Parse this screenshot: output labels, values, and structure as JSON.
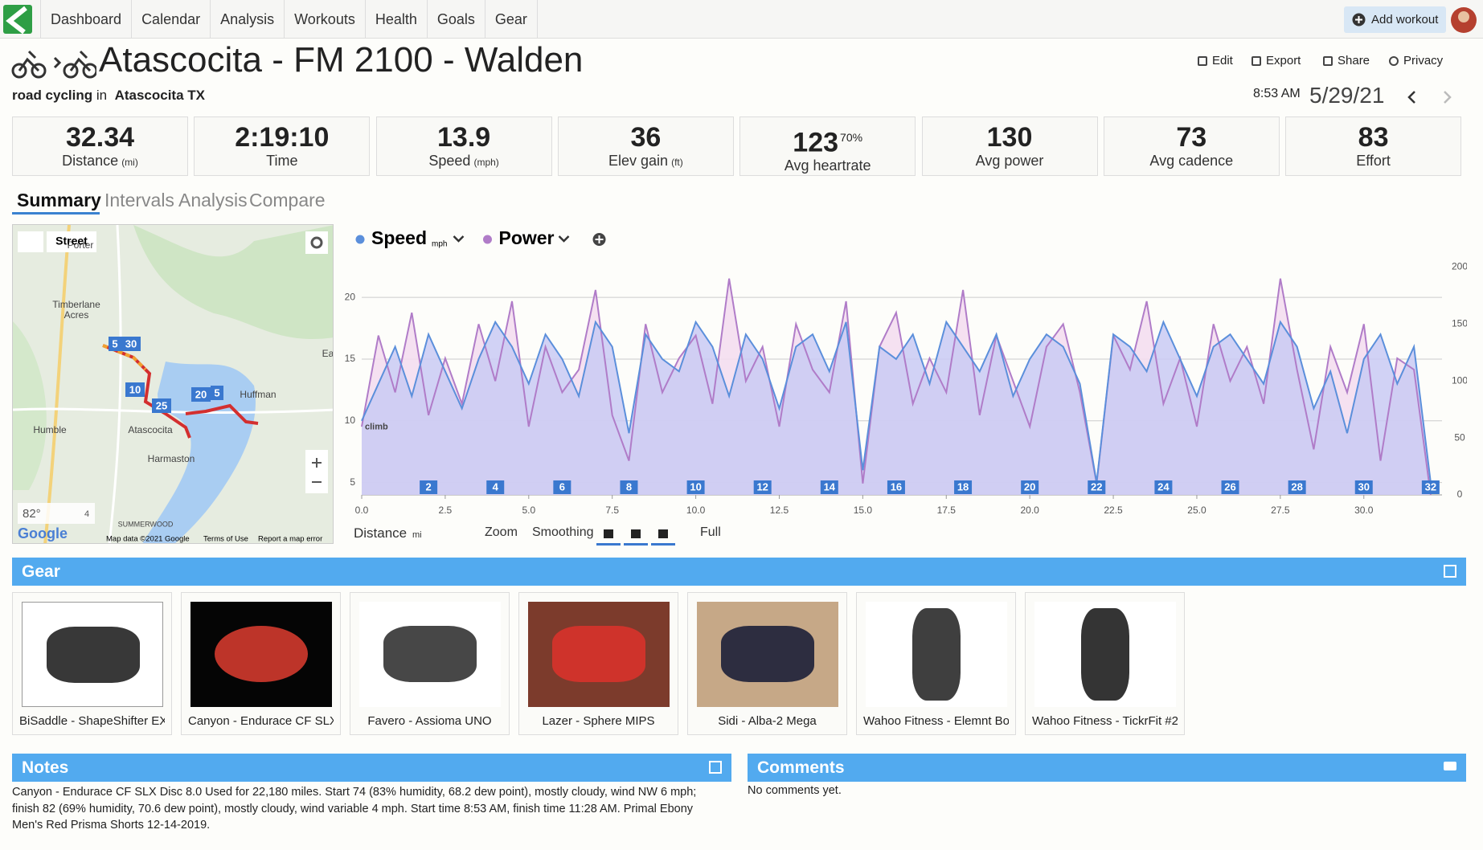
{
  "nav": {
    "items": [
      "Dashboard",
      "Calendar",
      "Analysis",
      "Workouts",
      "Health",
      "Goals",
      "Gear"
    ],
    "add_workout": "Add workout"
  },
  "header": {
    "title": "Atascocita - FM 2100 - Walden",
    "sport": "road cycling",
    "in": "in",
    "location": "Atascocita TX",
    "actions": [
      "Edit",
      "Export",
      "Share",
      "Privacy"
    ],
    "time": "8:53 AM",
    "date": "5/29/21"
  },
  "stats": [
    {
      "value": "32.34",
      "label": "Distance",
      "unit": "(mi)"
    },
    {
      "value": "2:19:10",
      "label": "Time"
    },
    {
      "value": "13.9",
      "label": "Speed",
      "unit": "(mph)"
    },
    {
      "value": "36",
      "label": "Elev gain",
      "unit": "(ft)"
    },
    {
      "value": "123",
      "sup": "70%",
      "label": "Avg heartrate"
    },
    {
      "value": "130",
      "label": "Avg power"
    },
    {
      "value": "73",
      "label": "Avg cadence"
    },
    {
      "value": "83",
      "label": "Effort"
    }
  ],
  "tabs": [
    "Summary",
    "Intervals",
    "Analysis",
    "Compare"
  ],
  "map": {
    "layer": "Street",
    "places": [
      "Porter",
      "Timberlane",
      "Acres",
      "Humble",
      "Atascocita",
      "Huffman",
      "Harmaston",
      "SUMMERWOOD",
      "Ea"
    ],
    "markers": [
      "5",
      "30",
      "10",
      "25",
      "20",
      "5"
    ],
    "temp": "82°",
    "wind": "4",
    "logo": "Google",
    "attribution": "Map data ©2021 Google",
    "terms": "Terms of Use",
    "report": "Report a map error"
  },
  "chart_data": {
    "type": "line",
    "x": [
      0,
      0.5,
      1,
      1.5,
      2,
      2.5,
      3,
      3.5,
      4,
      4.5,
      5,
      5.5,
      6,
      6.5,
      7,
      7.5,
      8,
      8.5,
      9,
      9.5,
      10,
      10.5,
      11,
      11.5,
      12,
      12.5,
      13,
      13.5,
      14,
      14.5,
      15,
      15.5,
      16,
      16.5,
      17,
      17.5,
      18,
      18.5,
      19,
      19.5,
      20,
      20.5,
      21,
      21.5,
      22,
      22.5,
      23,
      23.5,
      24,
      24.5,
      25,
      25.5,
      26,
      26.5,
      27,
      27.5,
      28,
      28.5,
      29,
      29.5,
      30,
      30.5,
      31,
      31.5,
      32
    ],
    "series": [
      {
        "name": "Speed",
        "unit": "mph",
        "color": "#5b8fdb",
        "area_color": "#c9caf3",
        "axis": "y",
        "values": [
          10,
          13,
          16,
          12,
          17,
          14,
          11,
          15,
          18,
          16,
          13,
          17,
          15,
          12,
          18,
          16,
          9,
          17,
          15,
          14,
          18,
          16,
          12,
          17,
          15,
          11,
          16,
          17,
          14,
          18,
          6,
          16,
          15,
          17,
          13,
          18,
          16,
          14,
          17,
          12,
          15,
          17,
          16,
          13,
          5,
          17,
          16,
          14,
          18,
          15,
          12,
          16,
          17,
          15,
          13,
          18,
          16,
          11,
          14,
          9,
          15,
          17,
          13,
          16,
          5
        ]
      },
      {
        "name": "Power",
        "color": "#b07cc8",
        "area_color": "#f3dcef",
        "axis": "y2",
        "values": [
          60,
          140,
          90,
          160,
          70,
          120,
          80,
          150,
          100,
          170,
          60,
          130,
          90,
          110,
          180,
          70,
          30,
          150,
          90,
          120,
          140,
          80,
          190,
          100,
          130,
          60,
          150,
          110,
          90,
          170,
          10,
          130,
          160,
          80,
          120,
          90,
          180,
          70,
          140,
          100,
          60,
          130,
          150,
          90,
          10,
          140,
          110,
          170,
          80,
          120,
          60,
          150,
          100,
          130,
          80,
          190,
          110,
          40,
          130,
          90,
          150,
          30,
          120,
          110,
          0
        ]
      }
    ],
    "xlim": [
      0,
      32.34
    ],
    "xticks": [
      {
        "value": 0,
        "label": "0.0"
      },
      2.5,
      {
        "value": 5,
        "label": "5.0"
      },
      7.5,
      {
        "value": 10,
        "label": "10.0"
      },
      12.5,
      {
        "value": 15,
        "label": "15.0"
      },
      17.5,
      {
        "value": 20,
        "label": "20.0"
      },
      22.5,
      {
        "value": 25,
        "label": "25.0"
      },
      27.5,
      {
        "value": 30,
        "label": "30.0"
      }
    ],
    "ylim": [
      4,
      23
    ],
    "yticks": [
      5,
      10,
      15,
      20
    ],
    "y2lim": [
      0,
      206
    ],
    "y2ticks": [
      0,
      50,
      100,
      150,
      200
    ],
    "grid": true,
    "annotation": "climb",
    "annotation_y": 10,
    "lap_markers": [
      2,
      4,
      6,
      8,
      10,
      12,
      14,
      16,
      18,
      20,
      22,
      24,
      26,
      28,
      30,
      32
    ],
    "controls": {
      "axis": "Distance",
      "unit": "mi",
      "zoom": "Zoom",
      "smoothing": "Smoothing",
      "full": "Full"
    }
  },
  "gear": {
    "title": "Gear",
    "items": [
      "BiSaddle - ShapeShifter EXT",
      "Canyon - Endurace CF SLX D",
      "Favero - Assioma UNO",
      "Lazer - Sphere MIPS",
      "Sidi - Alba-2 Mega",
      "Wahoo Fitness - Elemnt Bol",
      "Wahoo Fitness - TickrFit #2"
    ]
  },
  "notes": {
    "title": "Notes",
    "text": "Canyon - Endurace CF SLX Disc 8.0 Used for 22,180 miles. Start 74 (83% humidity, 68.2 dew point), mostly cloudy, wind NW 6 mph; finish 82 (69% humidity, 70.6 dew point), mostly cloudy, wind variable 4 mph. Start time 8:53 AM, finish time 11:28 AM. Primal Ebony Men's Red Prisma Shorts 12-14-2019."
  },
  "comments": {
    "title": "Comments",
    "text": "No comments yet."
  }
}
